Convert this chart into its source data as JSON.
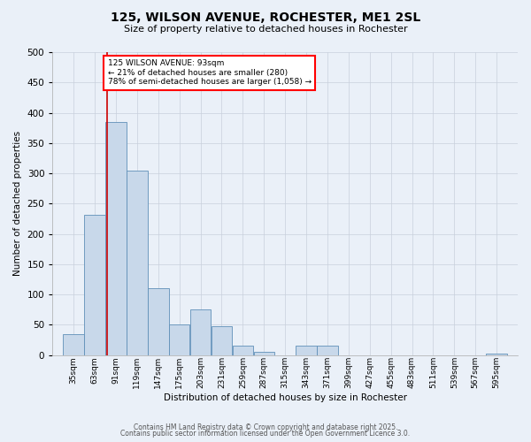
{
  "title": "125, WILSON AVENUE, ROCHESTER, ME1 2SL",
  "subtitle": "Size of property relative to detached houses in Rochester",
  "xlabel": "Distribution of detached houses by size in Rochester",
  "ylabel": "Number of detached properties",
  "bar_color": "#c8d8ea",
  "bar_edge_color": "#6090b8",
  "bg_color": "#eaf0f8",
  "fig_color": "#eaf0f8",
  "grid_color": "#c8d0dc",
  "annotation_text": "125 WILSON AVENUE: 93sqm\n← 21% of detached houses are smaller (280)\n78% of semi-detached houses are larger (1,058) →",
  "vline_x": 93,
  "vline_color": "#cc0000",
  "ylim": [
    0,
    500
  ],
  "bin_labels": [
    "35sqm",
    "63sqm",
    "91sqm",
    "119sqm",
    "147sqm",
    "175sqm",
    "203sqm",
    "231sqm",
    "259sqm",
    "287sqm",
    "315sqm",
    "343sqm",
    "371sqm",
    "399sqm",
    "427sqm",
    "455sqm",
    "483sqm",
    "511sqm",
    "539sqm",
    "567sqm",
    "595sqm"
  ],
  "bin_edges": [
    35,
    63,
    91,
    119,
    147,
    175,
    203,
    231,
    259,
    287,
    315,
    343,
    371,
    399,
    427,
    455,
    483,
    511,
    539,
    567,
    595
  ],
  "bar_heights": [
    35,
    232,
    385,
    305,
    110,
    50,
    75,
    47,
    15,
    5,
    0,
    15,
    15,
    0,
    0,
    0,
    0,
    0,
    0,
    0,
    2
  ],
  "footnote1": "Contains HM Land Registry data © Crown copyright and database right 2025.",
  "footnote2": "Contains public sector information licensed under the Open Government Licence 3.0."
}
